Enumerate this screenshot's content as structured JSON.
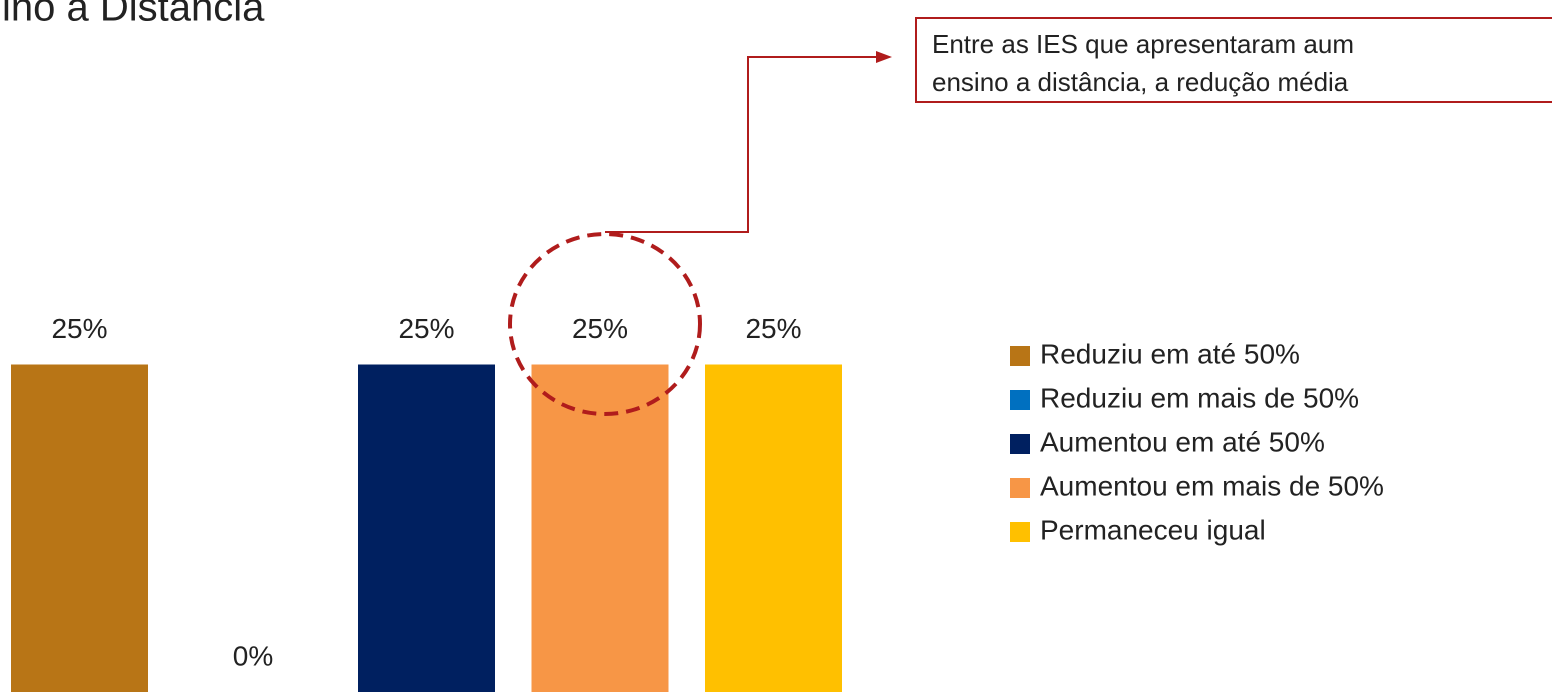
{
  "chart_data": {
    "type": "bar",
    "title": "ino a Distância",
    "annotation": [
      "Entre as IES que apresentaram aum",
      "ensino a distância, a redução média"
    ],
    "series": [
      {
        "name": "Reduziu em até 50%",
        "color": "#b87516",
        "values": [
          25
        ],
        "value_labels": [
          "25%"
        ]
      },
      {
        "name": "Reduziu em mais de 50%",
        "color": "#0070c0",
        "values": [
          0
        ],
        "value_labels": [
          "0%"
        ]
      },
      {
        "name": "Aumentou em até 50%",
        "color": "#002060",
        "values": [
          25
        ],
        "value_labels": [
          "25%"
        ]
      },
      {
        "name": "Aumentou em mais de 50%",
        "color": "#f79646",
        "values": [
          25
        ],
        "value_labels": [
          "25%"
        ]
      },
      {
        "name": "Permaneceu igual",
        "color": "#ffc000",
        "values": [
          25
        ],
        "value_labels": [
          "25%"
        ]
      }
    ]
  }
}
